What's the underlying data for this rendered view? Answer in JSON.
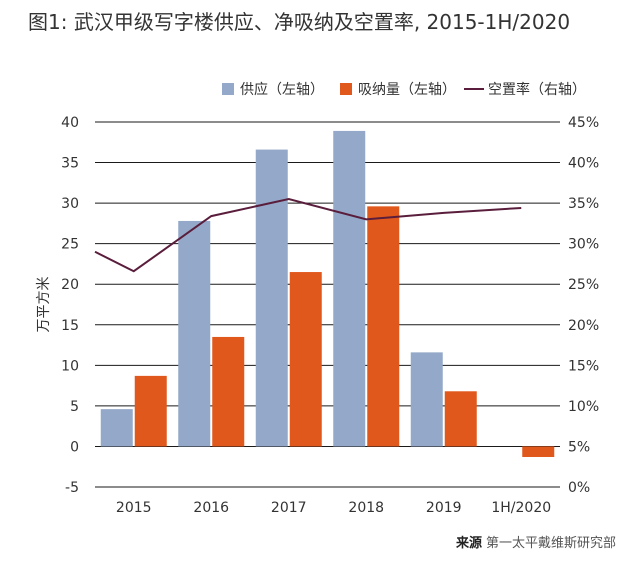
{
  "title": "图1: 武汉甲级写字楼供应、净吸纳及空置率, 2015-1H/2020",
  "source_label": "来源",
  "source_text": "第一太平戴维斯研究部",
  "chart_data": {
    "type": "bar",
    "categories": [
      "2015",
      "2016",
      "2017",
      "2018",
      "2019",
      "1H/2020"
    ],
    "series": [
      {
        "name": "供应（左轴）",
        "type": "bar",
        "axis": "left",
        "color": "#94a9c9",
        "values": [
          4.6,
          27.8,
          36.6,
          38.9,
          11.6,
          0
        ]
      },
      {
        "name": "吸纳量（左轴）",
        "type": "bar",
        "axis": "left",
        "color": "#e0581c",
        "values": [
          8.7,
          13.5,
          21.5,
          29.6,
          6.8,
          -1.3
        ]
      },
      {
        "name": "空置率（右轴）",
        "type": "line",
        "axis": "right",
        "color": "#5a1e3c",
        "values": [
          26.6,
          33.4,
          35.5,
          33.0,
          33.8,
          34.4
        ],
        "x_positions": [
          2015,
          2016,
          2017,
          2018,
          2019,
          2020
        ],
        "extra_start": {
          "x": 2014.5,
          "y": 29.0
        }
      }
    ],
    "left_axis": {
      "label": "万平方米",
      "ylim": [
        -5,
        40
      ],
      "ticks": [
        "-5",
        "0",
        "5",
        "10",
        "15",
        "20",
        "25",
        "30",
        "35",
        "40"
      ]
    },
    "right_axis": {
      "label": "",
      "ylim": [
        0,
        45
      ],
      "ticks": [
        "0%",
        "5%",
        "10%",
        "15%",
        "20%",
        "25%",
        "30%",
        "35%",
        "40%",
        "45%"
      ]
    },
    "grid": true,
    "legend": "top-right"
  }
}
